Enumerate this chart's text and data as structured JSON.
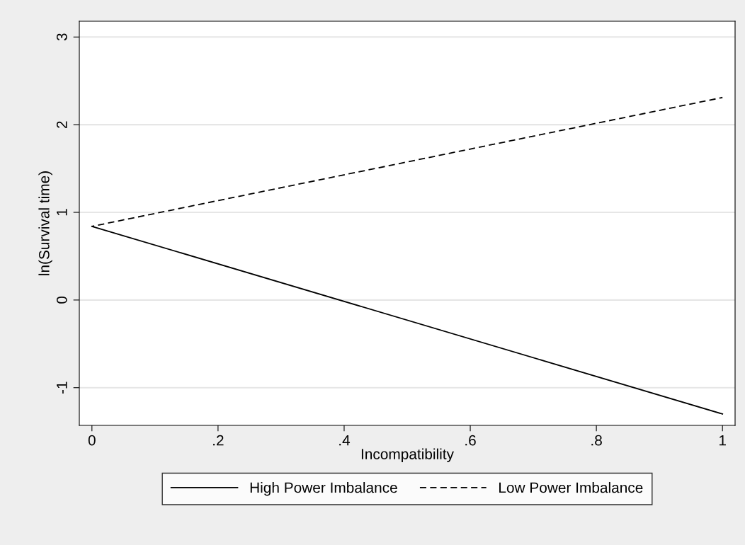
{
  "chart_data": {
    "type": "line",
    "xlabel": "Incompatibility",
    "ylabel": "ln(Survival time)",
    "x": [
      0,
      1
    ],
    "series": [
      {
        "name": "High Power Imbalance",
        "color": "#000000",
        "values": [
          0.84,
          -1.3
        ],
        "line_style": "solid"
      },
      {
        "name": "Low Power Imbalance",
        "color": "#000000",
        "values": [
          0.84,
          2.31
        ],
        "line_style": "dashed"
      }
    ],
    "xlim": [
      -0.02,
      1.02
    ],
    "ylim": [
      -1.43,
      3.18
    ],
    "xticks": [
      0,
      {
        "value": 0.2,
        "label": ".2"
      },
      {
        "value": 0.4,
        "label": ".4"
      },
      {
        "value": 0.6,
        "label": ".6"
      },
      {
        "value": 0.8,
        "label": ".8"
      },
      1
    ],
    "yticks": [
      -1,
      0,
      1,
      2,
      3
    ],
    "grid": "y",
    "legend": "bottom",
    "marker": "none"
  }
}
